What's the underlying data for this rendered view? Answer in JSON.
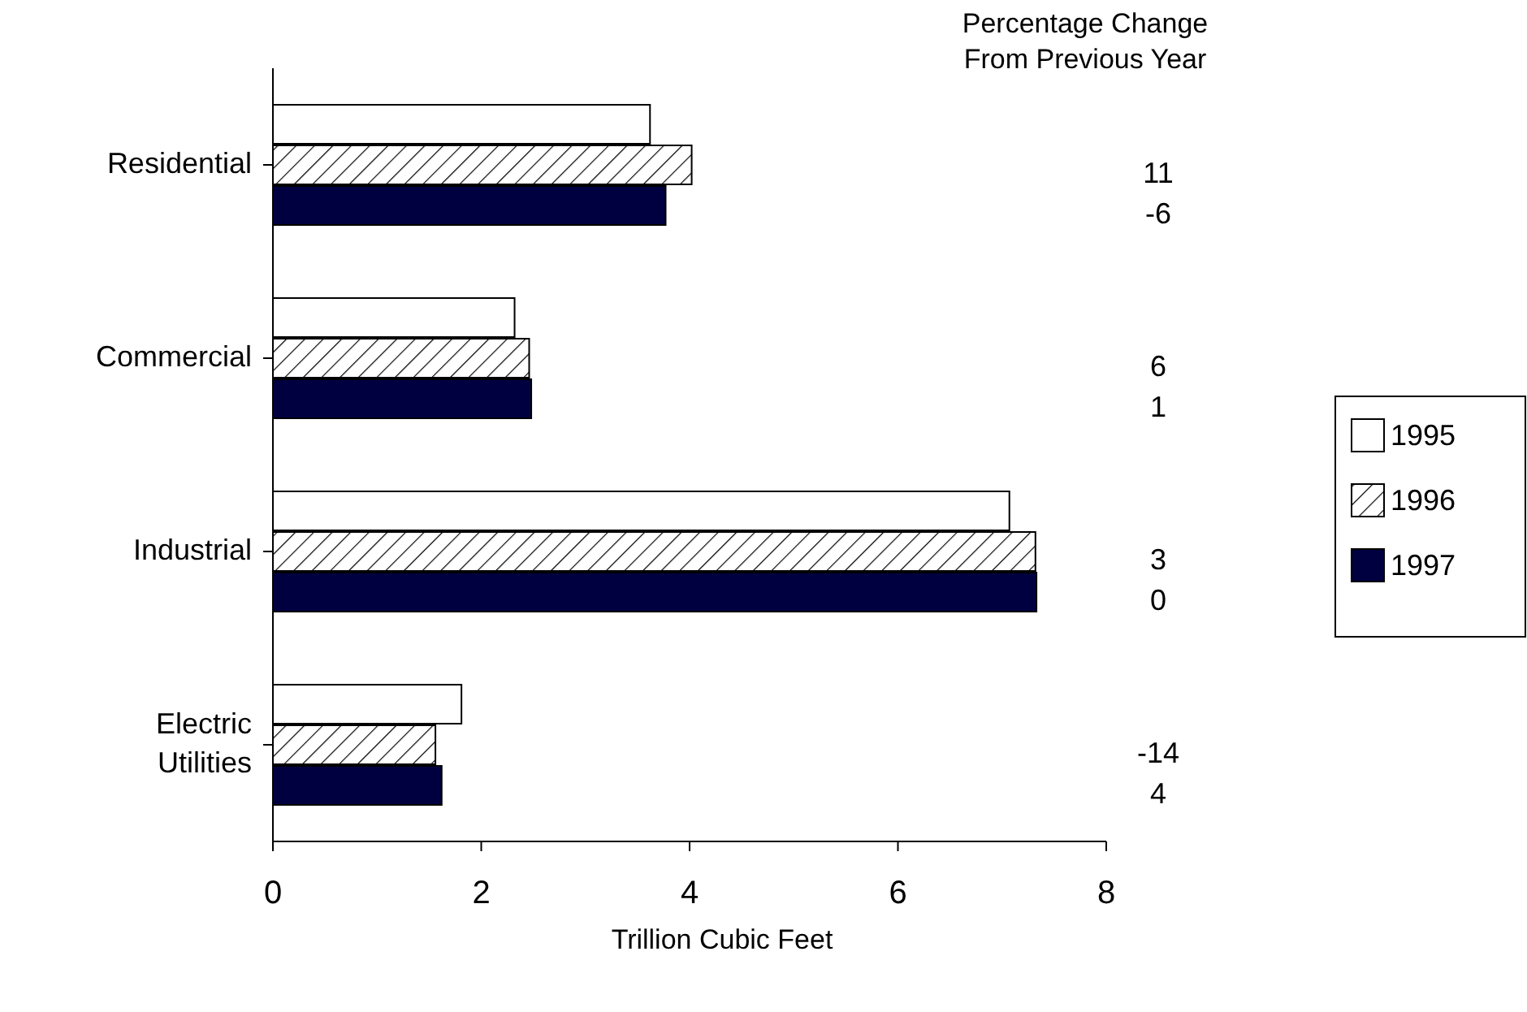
{
  "chart_data": {
    "type": "bar",
    "orientation": "horizontal",
    "xlabel": "Trillion Cubic Feet",
    "categories": [
      "Residential",
      "Commercial",
      "Industrial",
      "Electric Utilities"
    ],
    "series": [
      {
        "name": "1995",
        "color": "#ffffff",
        "values": [
          3.62,
          2.32,
          7.07,
          1.81
        ]
      },
      {
        "name": "1996",
        "color": "#000000",
        "values": [
          4.02,
          2.46,
          7.32,
          1.56
        ]
      },
      {
        "name": "1997",
        "color": "#000040",
        "values": [
          3.77,
          2.48,
          7.33,
          1.62
        ]
      }
    ],
    "xlim": [
      0,
      8
    ],
    "xticks": [
      0,
      2,
      4,
      6,
      8
    ],
    "legend": "right",
    "grid": false,
    "annotations": [
      "Percentage Change\nFrom Previous Year",
      "11",
      "-6",
      "6",
      "1",
      "3",
      "0",
      "-14",
      "4"
    ]
  }
}
